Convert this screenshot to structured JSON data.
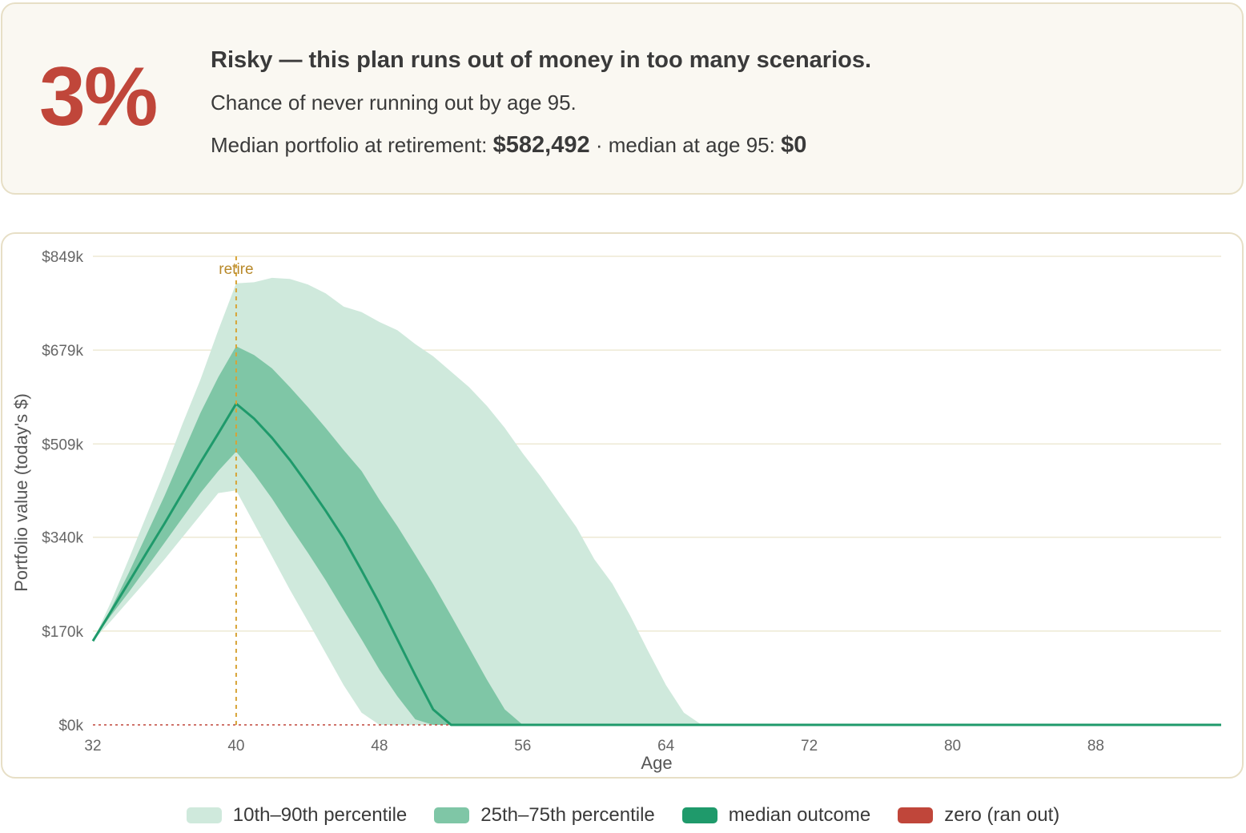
{
  "summary": {
    "success_rate": "3%",
    "verdict": "Risky — this plan runs out of money in too many scenarios.",
    "subline": "Chance of never running out by age 95.",
    "median_prefix": "Median portfolio at retirement: ",
    "median_retirement": "$582,492",
    "median_mid": " · median at age 95: ",
    "median_age95": "$0"
  },
  "colors": {
    "band_outer": "#cfe9dc",
    "band_inner": "#7fc6a6",
    "median": "#1f9a6b",
    "zero": "#c0463a",
    "retire": "#d7a437",
    "retire_text": "#b8892a",
    "grid": "#ede9d4",
    "tick_text": "#666666"
  },
  "chart_data": {
    "type": "area",
    "xlabel": "Age",
    "ylabel": "Portfolio value (today's $)",
    "xlim": [
      32,
      95
    ],
    "ylim": [
      0,
      849
    ],
    "x_ticks": [
      32,
      40,
      48,
      56,
      64,
      72,
      80,
      88
    ],
    "y_ticks": [
      0,
      170,
      340,
      509,
      679,
      849
    ],
    "y_tick_labels": [
      "$0k",
      "$170k",
      "$340k",
      "$509k",
      "$679k",
      "$849k"
    ],
    "retire_age": 40,
    "retire_label": "retire",
    "x": [
      32,
      33,
      34,
      35,
      36,
      37,
      38,
      39,
      40,
      41,
      42,
      43,
      44,
      45,
      46,
      47,
      48,
      49,
      50,
      51,
      52,
      53,
      54,
      55,
      56,
      57,
      58,
      59,
      60,
      61,
      62,
      63,
      64,
      65,
      66,
      67,
      95
    ],
    "series": [
      {
        "name": "10th–90th percentile",
        "kind": "band",
        "low": [
          152,
          188,
          225,
          262,
          300,
          340,
          380,
          420,
          425,
          365,
          305,
          245,
          188,
          130,
          72,
          22,
          0,
          0,
          0,
          0,
          0,
          0,
          0,
          0,
          0,
          0,
          0,
          0,
          0,
          0,
          0,
          0,
          0,
          0,
          0,
          0,
          0
        ],
        "high": [
          152,
          222,
          300,
          380,
          460,
          545,
          625,
          715,
          800,
          802,
          810,
          808,
          798,
          782,
          758,
          748,
          730,
          715,
          690,
          668,
          640,
          612,
          578,
          538,
          492,
          450,
          404,
          358,
          300,
          256,
          198,
          134,
          72,
          22,
          0,
          0,
          0
        ]
      },
      {
        "name": "25th–75th percentile",
        "kind": "band",
        "low": [
          152,
          198,
          240,
          285,
          330,
          375,
          420,
          460,
          495,
          455,
          410,
          360,
          312,
          262,
          208,
          155,
          100,
          52,
          10,
          0,
          0,
          0,
          0,
          0,
          0,
          0,
          0,
          0,
          0,
          0,
          0,
          0,
          0,
          0,
          0,
          0,
          0
        ]
      },
      {
        "name": "25th–75th percentile upper",
        "kind": "band_upper",
        "high": [
          152,
          210,
          275,
          345,
          415,
          490,
          565,
          630,
          686,
          670,
          646,
          612,
          576,
          538,
          498,
          460,
          408,
          360,
          308,
          255,
          198,
          140,
          82,
          28,
          0,
          0,
          0,
          0,
          0,
          0,
          0,
          0,
          0,
          0,
          0,
          0,
          0
        ]
      },
      {
        "name": "median outcome",
        "kind": "line",
        "values": [
          152,
          205,
          258,
          312,
          365,
          420,
          475,
          528,
          582,
          555,
          520,
          480,
          435,
          388,
          338,
          280,
          220,
          155,
          90,
          28,
          0,
          0,
          0,
          0,
          0,
          0,
          0,
          0,
          0,
          0,
          0,
          0,
          0,
          0,
          0,
          0,
          0
        ]
      }
    ],
    "legend": [
      {
        "label": "10th–90th percentile",
        "color": "#cfe9dc"
      },
      {
        "label": "25th–75th percentile",
        "color": "#7fc6a6"
      },
      {
        "label": "median outcome",
        "color": "#1f9a6b"
      },
      {
        "label": "zero (ran out)",
        "color": "#c0463a"
      }
    ],
    "legend_position": "bottom"
  }
}
